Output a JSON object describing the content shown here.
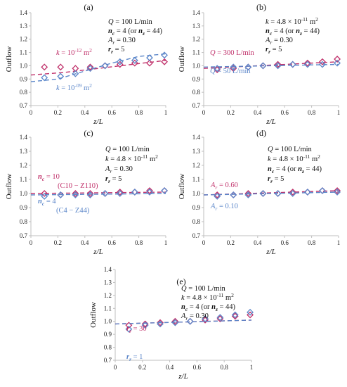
{
  "colors": {
    "pink": "#c0306a",
    "blue": "#5b86c9",
    "axis": "#bfbfbf",
    "text": "#111111"
  },
  "chart_data": [
    {
      "type": "scatter",
      "panel": "(a)",
      "xlabel": "z/L",
      "ylabel": "Outflow",
      "xlim": [
        0,
        1
      ],
      "ylim": [
        0.7,
        1.4
      ],
      "xticks": [
        "0",
        "0.2",
        "0.4",
        "0.6",
        "0.8",
        "1"
      ],
      "yticks": [
        "0.7",
        "0.8",
        "0.9",
        "1.0",
        "1.1",
        "1.2",
        "1.3",
        "1.4"
      ],
      "annotations": [
        "Q = 100 L/min",
        "nc = 4 (or nz = 44)",
        "Ar = 0.30",
        "rr = 5"
      ],
      "series": [
        {
          "name": "k = 10^-12 m^2",
          "color": "pink",
          "x": [
            0.1,
            0.22,
            0.33,
            0.44,
            0.55,
            0.66,
            0.77,
            0.88,
            0.99
          ],
          "y": [
            0.99,
            0.99,
            0.98,
            0.99,
            1.0,
            1.01,
            1.02,
            1.02,
            1.03
          ],
          "trend": [
            [
              0.0,
              0.93
            ],
            [
              0.25,
              0.95
            ],
            [
              0.5,
              0.98
            ],
            [
              0.75,
              1.01
            ],
            [
              1.0,
              1.04
            ]
          ]
        },
        {
          "name": "k = 10^-09 m^2",
          "color": "blue",
          "x": [
            0.1,
            0.22,
            0.33,
            0.44,
            0.55,
            0.66,
            0.77,
            0.88,
            0.99
          ],
          "y": [
            0.91,
            0.92,
            0.94,
            0.98,
            1.0,
            1.03,
            1.04,
            1.06,
            1.08
          ],
          "trend": [
            [
              0.0,
              0.88
            ],
            [
              0.2,
              0.9
            ],
            [
              0.4,
              0.96
            ],
            [
              0.6,
              1.02
            ],
            [
              0.8,
              1.07
            ],
            [
              1.0,
              1.09
            ]
          ]
        }
      ]
    },
    {
      "type": "scatter",
      "panel": "(b)",
      "xlabel": "z/L",
      "ylabel": "Outflow",
      "xlim": [
        0,
        1
      ],
      "ylim": [
        0.7,
        1.4
      ],
      "xticks": [
        "0",
        "0.2",
        "0.4",
        "0.6",
        "0.8",
        "1"
      ],
      "yticks": [
        "0.7",
        "0.8",
        "0.9",
        "1.0",
        "1.1",
        "1.2",
        "1.3",
        "1.4"
      ],
      "annotations": [
        "k = 4.8 × 10^-11 m^2",
        "nc = 4 (or nz = 44)",
        "Ar = 0.30",
        "rr = 5"
      ],
      "series": [
        {
          "name": "Q = 300 L/min",
          "color": "pink",
          "x": [
            0.1,
            0.22,
            0.33,
            0.44,
            0.55,
            0.66,
            0.77,
            0.88,
            0.99
          ],
          "y": [
            0.97,
            0.98,
            0.99,
            1.0,
            1.01,
            1.01,
            1.02,
            1.03,
            1.05
          ],
          "trend": [
            [
              0.0,
              0.98
            ],
            [
              1.0,
              1.03
            ]
          ]
        },
        {
          "name": "Q = 50 L/min",
          "color": "blue",
          "x": [
            0.1,
            0.22,
            0.33,
            0.44,
            0.55,
            0.66,
            0.77,
            0.88,
            0.99
          ],
          "y": [
            0.98,
            0.99,
            0.99,
            1.0,
            1.0,
            1.01,
            1.01,
            1.01,
            1.02
          ],
          "trend": [
            [
              0.0,
              0.99
            ],
            [
              1.0,
              1.01
            ]
          ]
        }
      ]
    },
    {
      "type": "scatter",
      "panel": "(c)",
      "xlabel": "z/L",
      "ylabel": "Outflow",
      "xlim": [
        0,
        1
      ],
      "ylim": [
        0.7,
        1.4
      ],
      "xticks": [
        "0",
        "0.2",
        "0.4",
        "0.6",
        "0.8",
        "1"
      ],
      "yticks": [
        "0.7",
        "0.8",
        "0.9",
        "1.0",
        "1.1",
        "1.2",
        "1.3",
        "1.4"
      ],
      "annotations": [
        "Q = 100 L/min",
        "k = 4.8 × 10^-11 m^2",
        "Ar = 0.30",
        "rr = 5"
      ],
      "series": [
        {
          "name": "nc = 10 (C10 − Z110)",
          "color": "pink",
          "x": [
            0.1,
            0.22,
            0.33,
            0.44,
            0.55,
            0.66,
            0.77,
            0.88,
            0.99
          ],
          "y": [
            1.0,
            0.99,
            1.0,
            1.0,
            1.0,
            1.01,
            1.01,
            1.02,
            1.02
          ],
          "trend": [
            [
              0.0,
              1.0
            ],
            [
              1.0,
              1.01
            ]
          ]
        },
        {
          "name": "nc = 4 (C4 − Z44)",
          "color": "blue",
          "x": [
            0.1,
            0.22,
            0.33,
            0.44,
            0.55,
            0.66,
            0.77,
            0.88,
            0.99
          ],
          "y": [
            0.98,
            0.99,
            0.99,
            0.99,
            1.0,
            1.0,
            1.01,
            1.01,
            1.02
          ],
          "trend": [
            [
              0.0,
              0.99
            ],
            [
              1.0,
              1.0
            ]
          ]
        }
      ]
    },
    {
      "type": "scatter",
      "panel": "(d)",
      "xlabel": "z/L",
      "ylabel": "Outflow",
      "xlim": [
        0,
        1
      ],
      "ylim": [
        0.7,
        1.4
      ],
      "xticks": [
        "0",
        "0.2",
        "0.4",
        "0.6",
        "0.8",
        "1"
      ],
      "yticks": [
        "0.7",
        "0.8",
        "0.9",
        "1.0",
        "1.1",
        "1.2",
        "1.3",
        "1.4"
      ],
      "annotations": [
        "Q = 100 L/min",
        "k = 4.8 × 10^-11 m^2",
        "nc = 4 (or nz = 44)",
        "rr = 5"
      ],
      "series": [
        {
          "name": "Ar = 0.60",
          "color": "pink",
          "x": [
            0.1,
            0.22,
            0.33,
            0.44,
            0.55,
            0.66,
            0.77,
            0.88,
            0.99
          ],
          "y": [
            0.99,
            0.99,
            1.0,
            1.0,
            1.0,
            1.01,
            1.01,
            1.02,
            1.02
          ],
          "trend": [
            [
              0.0,
              0.99
            ],
            [
              1.0,
              1.02
            ]
          ]
        },
        {
          "name": "Ar = 0.10",
          "color": "blue",
          "x": [
            0.1,
            0.22,
            0.33,
            0.44,
            0.55,
            0.66,
            0.77,
            0.88,
            0.99
          ],
          "y": [
            0.98,
            0.99,
            0.99,
            1.0,
            1.0,
            1.0,
            1.01,
            1.02,
            1.01
          ],
          "trend": [
            [
              0.0,
              0.99
            ],
            [
              1.0,
              1.01
            ]
          ]
        }
      ]
    },
    {
      "type": "scatter",
      "panel": "(e)",
      "xlabel": "z/L",
      "ylabel": "Outflow",
      "xlim": [
        0,
        1
      ],
      "ylim": [
        0.7,
        1.4
      ],
      "xticks": [
        "0",
        "0.2",
        "0.4",
        "0.6",
        "0.8",
        "1"
      ],
      "yticks": [
        "0.7",
        "0.8",
        "0.9",
        "1.0",
        "1.1",
        "1.2",
        "1.3",
        "1.4"
      ],
      "annotations": [
        "Q = 100 L/min",
        "k = 4.8 × 10^-11 m^2",
        "nc = 4 (or nz = 44)",
        "Ar = 0.30"
      ],
      "series": [
        {
          "name": "rr = 30",
          "color": "pink",
          "x": [
            0.1,
            0.22,
            0.33,
            0.44,
            0.55,
            0.66,
            0.77,
            0.88,
            0.99
          ],
          "y": [
            0.97,
            0.98,
            0.99,
            1.0,
            1.0,
            1.01,
            1.02,
            1.04,
            1.05
          ],
          "trend": [
            [
              0.0,
              0.98
            ],
            [
              1.0,
              1.01
            ]
          ]
        },
        {
          "name": "rr = 1",
          "color": "blue",
          "x": [
            0.1,
            0.22,
            0.33,
            0.44,
            0.55,
            0.66,
            0.77,
            0.88,
            0.99
          ],
          "y": [
            0.94,
            0.97,
            0.98,
            0.99,
            1.0,
            1.02,
            1.03,
            1.05,
            1.07
          ],
          "trend": [
            [
              0.0,
              0.98
            ],
            [
              1.0,
              1.01
            ]
          ]
        }
      ]
    }
  ]
}
